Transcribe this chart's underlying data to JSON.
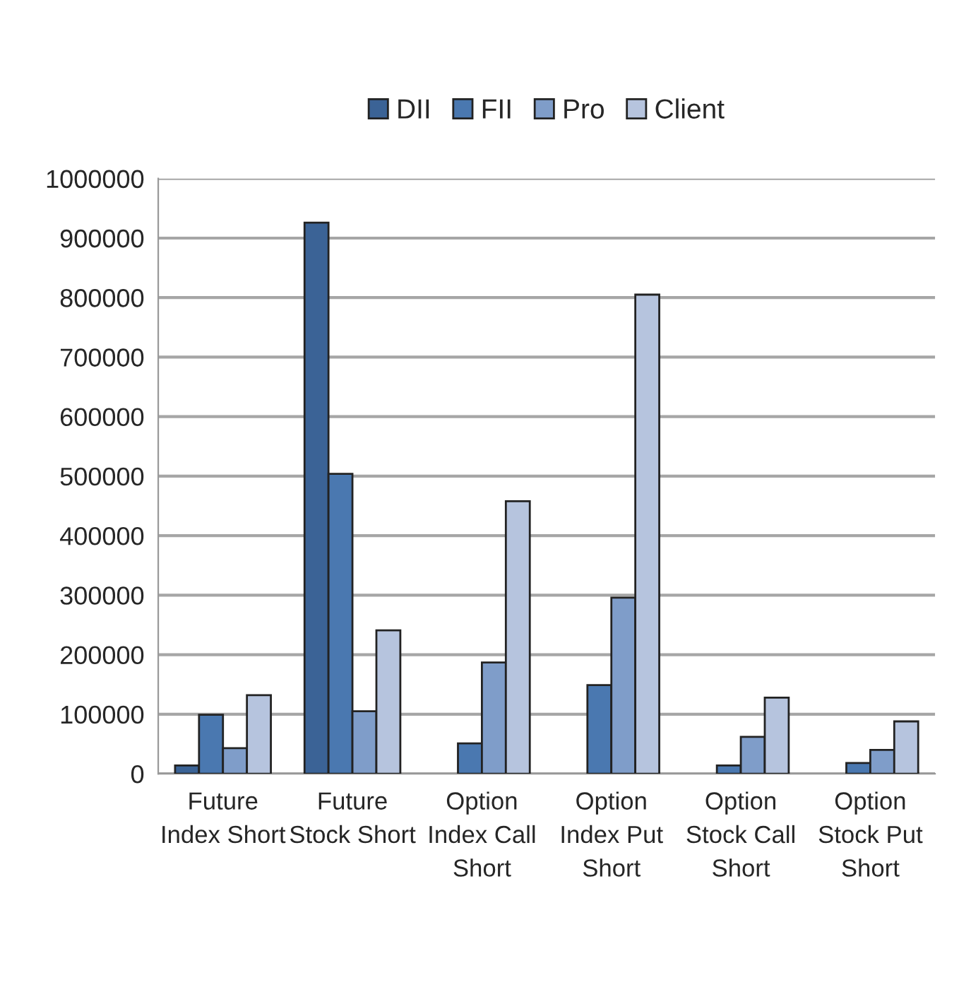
{
  "chart_data": {
    "type": "bar",
    "categories": [
      "Future\nIndex Short",
      "Future\nStock Short",
      "Option\nIndex Call\nShort",
      "Option\nIndex Put\nShort",
      "Option\nStock Call\nShort",
      "Option\nStock Put\nShort"
    ],
    "series": [
      {
        "name": "DII",
        "color": "#3b6396",
        "values": [
          14000,
          926000,
          null,
          null,
          null,
          null
        ]
      },
      {
        "name": "FII",
        "color": "#4a78b0",
        "values": [
          99000,
          504000,
          51000,
          149000,
          14000,
          18000
        ]
      },
      {
        "name": "Pro",
        "color": "#7f9dc9",
        "values": [
          43000,
          105000,
          187000,
          296000,
          62000,
          40000
        ]
      },
      {
        "name": "Client",
        "color": "#b6c4de",
        "values": [
          132000,
          241000,
          458000,
          805000,
          128000,
          88000
        ]
      }
    ],
    "ylim": [
      0,
      1000000
    ],
    "yticks": [
      0,
      100000,
      200000,
      300000,
      400000,
      500000,
      600000,
      700000,
      800000,
      900000,
      1000000
    ],
    "grid": "y",
    "legend": "top"
  }
}
